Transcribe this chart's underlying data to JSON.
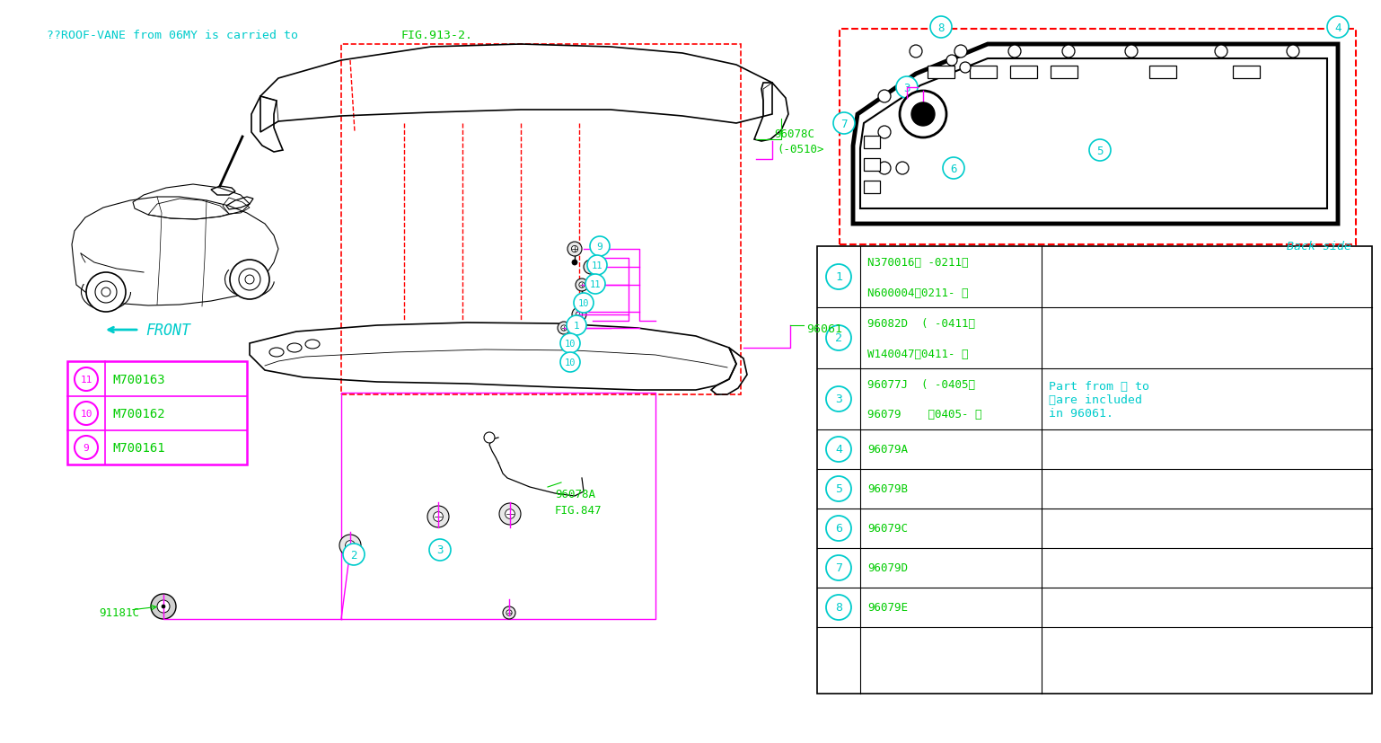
{
  "bg": "#ffffff",
  "cyan": "#00cccc",
  "green": "#00cc00",
  "magenta": "#ff00ff",
  "black": "#000000",
  "red": "#ff0000",
  "title_cyan": "??ROOF-VANE from 06MY is carried to",
  "title_green": "FIG.913-2.",
  "table_rows": [
    {
      "num": "1",
      "line1": "N370016（ -0211）",
      "line2": "N600004（0211- ）"
    },
    {
      "num": "2",
      "line1": "96082D  ( -0411）",
      "line2": "W140047（0411- ）"
    },
    {
      "num": "3",
      "line1": "96077J  ( -0405）",
      "line2": "96079    （0405- ）"
    },
    {
      "num": "4",
      "line1": "96079A",
      "line2": ""
    },
    {
      "num": "5",
      "line1": "96079B",
      "line2": ""
    },
    {
      "num": "6",
      "line1": "96079C",
      "line2": ""
    },
    {
      "num": "7",
      "line1": "96079D",
      "line2": ""
    },
    {
      "num": "8",
      "line1": "96079E",
      "line2": ""
    }
  ],
  "note": "Part from ⑤ to\n⑨are included\nin 96061.",
  "legend": [
    {
      "num": "9",
      "text": "M700161"
    },
    {
      "num": "10",
      "text": "M700162"
    },
    {
      "num": "11",
      "text": "M700163"
    }
  ]
}
